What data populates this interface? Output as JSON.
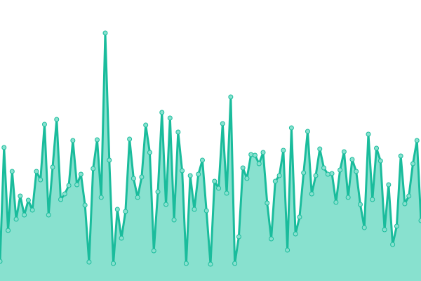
{
  "chart_data": {
    "type": "area",
    "values": [
      28,
      190,
      72,
      156,
      88,
      121,
      94,
      115,
      101,
      156,
      144,
      223,
      94,
      162,
      230,
      116,
      124,
      136,
      200,
      137,
      152,
      108,
      27,
      160,
      201,
      119,
      353,
      172,
      25,
      102,
      61,
      99,
      202,
      146,
      119,
      148,
      222,
      183,
      43,
      127,
      240,
      109,
      232,
      87,
      212,
      157,
      25,
      150,
      102,
      152,
      172,
      100,
      24,
      142,
      132,
      224,
      125,
      262,
      25,
      63,
      161,
      146,
      180,
      179,
      167,
      183,
      111,
      60,
      142,
      150,
      186,
      44,
      218,
      67,
      91,
      154,
      213,
      124,
      150,
      188,
      161,
      152,
      153,
      112,
      158,
      184,
      119,
      173,
      156,
      109,
      76,
      209,
      116,
      189,
      171,
      73,
      137,
      52,
      78,
      178,
      110,
      121,
      167,
      200,
      86
    ],
    "ylim": [
      0,
      400
    ],
    "color": "#1abc9c",
    "fill": "#88e1cf"
  }
}
